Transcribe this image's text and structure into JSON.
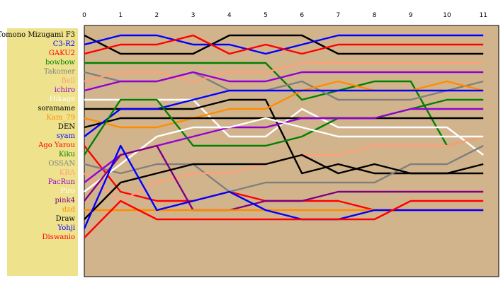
{
  "chart_data": {
    "type": "line",
    "title": "",
    "xlabel": "",
    "ylabel": "",
    "x": [
      0,
      1,
      2,
      3,
      4,
      5,
      6,
      7,
      8,
      9,
      10,
      11
    ],
    "rank_range": [
      1,
      23
    ],
    "legend_placement": "left",
    "background_color": "#d2b48c",
    "legend_background": "#efe28c",
    "series": [
      {
        "name": "Tomono Mizugami F3",
        "color": "#000000",
        "values": [
          1,
          3,
          3,
          3,
          1,
          1,
          1,
          3,
          3,
          3,
          3,
          3
        ]
      },
      {
        "name": "C3-R2",
        "color": "#0000ff",
        "values": [
          2,
          1,
          1,
          2,
          2,
          3,
          2,
          1,
          1,
          1,
          1,
          1
        ]
      },
      {
        "name": "GAKU2",
        "color": "#ff0000",
        "values": [
          3,
          2,
          2,
          1,
          3,
          2,
          3,
          2,
          2,
          2,
          2,
          2
        ]
      },
      {
        "name": "bowbow",
        "color": "#008000",
        "values": [
          4,
          4,
          4,
          4,
          4,
          4,
          8,
          7,
          6,
          6,
          13,
          12
        ]
      },
      {
        "name": "Takomer",
        "color": "#808080",
        "values": [
          5,
          6,
          6,
          5,
          7,
          7,
          6,
          8,
          8,
          8,
          7,
          6
        ]
      },
      {
        "name": "Bell",
        "color": "#ffa07a",
        "values": [
          6,
          5,
          5,
          6,
          5,
          5,
          4,
          4,
          4,
          4,
          4,
          4
        ]
      },
      {
        "name": "ichiro",
        "color": "#9400d3",
        "values": [
          7,
          6,
          6,
          5,
          6,
          6,
          5,
          5,
          5,
          5,
          5,
          5
        ]
      },
      {
        "name": "Hikage",
        "color": "#ffffff",
        "values": [
          8,
          8,
          8,
          8,
          12,
          12,
          9,
          11,
          11,
          11,
          11,
          14
        ]
      },
      {
        "name": "soramame",
        "color": "#000000",
        "values": [
          9,
          9,
          9,
          9,
          8,
          8,
          16,
          15,
          16,
          16,
          16,
          16
        ]
      },
      {
        "name": "Kam_79",
        "color": "#ff8c00",
        "values": [
          10,
          11,
          11,
          10,
          9,
          9,
          7,
          6,
          7,
          7,
          6,
          7
        ]
      },
      {
        "name": "DEN",
        "color": "#000000",
        "values": [
          11,
          10,
          10,
          10,
          10,
          10,
          10,
          10,
          10,
          10,
          10,
          10
        ]
      },
      {
        "name": "syam",
        "color": "#0000ff",
        "values": [
          12,
          9,
          9,
          8,
          7,
          7,
          7,
          7,
          7,
          7,
          7,
          7
        ]
      },
      {
        "name": "Ago Yarou",
        "color": "#ff0000",
        "values": [
          13,
          18,
          19,
          19,
          18,
          19,
          19,
          19,
          20,
          20,
          20,
          20
        ]
      },
      {
        "name": "Kiku",
        "color": "#008000",
        "values": [
          14,
          8,
          8,
          13,
          13,
          13,
          12,
          10,
          10,
          9,
          8,
          8
        ]
      },
      {
        "name": "OSSAN",
        "color": "#808080",
        "values": [
          15,
          16,
          15,
          15,
          18,
          17,
          17,
          17,
          17,
          15,
          15,
          13
        ]
      },
      {
        "name": "KRA",
        "color": "#ffa07a",
        "values": [
          16,
          19,
          17,
          16,
          16,
          15,
          14,
          14,
          13,
          13,
          13,
          12
        ]
      },
      {
        "name": "PacRun",
        "color": "#9400d3",
        "values": [
          17,
          14,
          13,
          12,
          11,
          11,
          10,
          10,
          10,
          9,
          9,
          9
        ]
      },
      {
        "name": "Piro",
        "color": "#ffffff",
        "values": [
          18,
          15,
          12,
          11,
          11,
          10,
          11,
          12,
          12,
          12,
          12,
          12
        ]
      },
      {
        "name": "pink4",
        "color": "#800080",
        "values": [
          19,
          14,
          13,
          20,
          20,
          19,
          19,
          18,
          18,
          18,
          18,
          18
        ]
      },
      {
        "name": "dzd",
        "color": "#ff8c00",
        "values": [
          20,
          20,
          20,
          20,
          20,
          20,
          20,
          20,
          20,
          20,
          20,
          20
        ]
      },
      {
        "name": "Draw",
        "color": "#000000",
        "values": [
          21,
          17,
          16,
          15,
          15,
          15,
          14,
          16,
          15,
          16,
          16,
          15
        ]
      },
      {
        "name": "Yohji",
        "color": "#0000ff",
        "values": [
          22,
          13,
          20,
          19,
          18,
          20,
          21,
          21,
          20,
          20,
          20,
          20
        ]
      },
      {
        "name": "Diswanio",
        "color": "#ff0000",
        "values": [
          23,
          19,
          21,
          21,
          21,
          21,
          21,
          21,
          21,
          19,
          19,
          19
        ]
      }
    ]
  }
}
